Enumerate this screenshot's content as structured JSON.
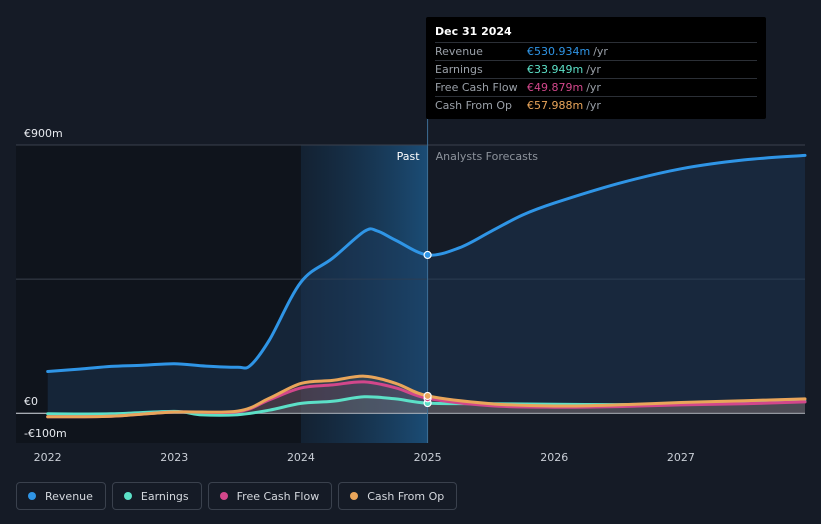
{
  "chart_data": {
    "type": "line",
    "title": "",
    "xlabel": "",
    "ylabel": "",
    "y_unit": "€",
    "ylim": [
      -100,
      900
    ],
    "xlim": [
      2021.75,
      2027.98
    ],
    "y_tick_labels": [
      {
        "value": 900,
        "label": "€900m"
      },
      {
        "value": 0,
        "label": "€0"
      },
      {
        "value": -100,
        "label": "-€100m"
      }
    ],
    "x_ticks": [
      {
        "value": 2022,
        "label": "2022"
      },
      {
        "value": 2023,
        "label": "2023"
      },
      {
        "value": 2024,
        "label": "2024"
      },
      {
        "value": 2025,
        "label": "2025"
      },
      {
        "value": 2026,
        "label": "2026"
      },
      {
        "value": 2027,
        "label": "2027"
      }
    ],
    "divider": {
      "x": 2025.0,
      "past_label": "Past",
      "forecast_label": "Analysts Forecasts"
    },
    "highlight_start": 2024.0,
    "series": [
      {
        "name": "Revenue",
        "color": "#2f95e6",
        "points": [
          [
            2022.0,
            140
          ],
          [
            2022.25,
            148
          ],
          [
            2022.5,
            157
          ],
          [
            2022.75,
            161
          ],
          [
            2023.0,
            166
          ],
          [
            2023.25,
            158
          ],
          [
            2023.5,
            154
          ],
          [
            2023.6,
            160
          ],
          [
            2023.75,
            245
          ],
          [
            2024.0,
            440
          ],
          [
            2024.25,
            520
          ],
          [
            2024.5,
            610
          ],
          [
            2024.6,
            612
          ],
          [
            2024.75,
            580
          ],
          [
            2025.0,
            531
          ],
          [
            2025.25,
            555
          ],
          [
            2025.5,
            610
          ],
          [
            2025.75,
            665
          ],
          [
            2026.0,
            705
          ],
          [
            2026.5,
            770
          ],
          [
            2027.0,
            820
          ],
          [
            2027.5,
            850
          ],
          [
            2027.98,
            865
          ]
        ]
      },
      {
        "name": "Earnings",
        "color": "#5ce0c7",
        "points": [
          [
            2022.0,
            -2
          ],
          [
            2022.5,
            -2
          ],
          [
            2023.0,
            6
          ],
          [
            2023.2,
            -5
          ],
          [
            2023.5,
            -5
          ],
          [
            2023.75,
            10
          ],
          [
            2024.0,
            33
          ],
          [
            2024.25,
            40
          ],
          [
            2024.5,
            55
          ],
          [
            2024.75,
            48
          ],
          [
            2025.0,
            34
          ],
          [
            2025.5,
            32
          ],
          [
            2026.0,
            30
          ],
          [
            2026.5,
            29
          ],
          [
            2027.0,
            31
          ],
          [
            2027.5,
            34
          ],
          [
            2027.98,
            40
          ]
        ]
      },
      {
        "name": "Free Cash Flow",
        "color": "#d2478b",
        "points": [
          [
            2022.0,
            -12
          ],
          [
            2022.5,
            -10
          ],
          [
            2023.0,
            4
          ],
          [
            2023.5,
            5
          ],
          [
            2023.75,
            45
          ],
          [
            2024.0,
            85
          ],
          [
            2024.25,
            95
          ],
          [
            2024.5,
            105
          ],
          [
            2024.75,
            85
          ],
          [
            2025.0,
            50
          ],
          [
            2025.5,
            25
          ],
          [
            2026.0,
            20
          ],
          [
            2026.5,
            22
          ],
          [
            2027.0,
            28
          ],
          [
            2027.5,
            32
          ],
          [
            2027.98,
            38
          ]
        ]
      },
      {
        "name": "Cash From Op",
        "color": "#e9a55a",
        "points": [
          [
            2022.0,
            -12
          ],
          [
            2022.5,
            -10
          ],
          [
            2023.0,
            4
          ],
          [
            2023.5,
            7
          ],
          [
            2023.75,
            50
          ],
          [
            2024.0,
            100
          ],
          [
            2024.25,
            110
          ],
          [
            2024.5,
            124
          ],
          [
            2024.75,
            100
          ],
          [
            2025.0,
            58
          ],
          [
            2025.5,
            32
          ],
          [
            2026.0,
            24
          ],
          [
            2026.5,
            28
          ],
          [
            2027.0,
            36
          ],
          [
            2027.5,
            42
          ],
          [
            2027.98,
            48
          ]
        ]
      }
    ]
  },
  "tooltip": {
    "date": "Dec 31 2024",
    "rows": [
      {
        "name": "Revenue",
        "value": "€530.934m",
        "unit": "/yr",
        "color": "#2f95e6"
      },
      {
        "name": "Earnings",
        "value": "€33.949m",
        "unit": "/yr",
        "color": "#5ce0c7"
      },
      {
        "name": "Free Cash Flow",
        "value": "€49.879m",
        "unit": "/yr",
        "color": "#d2478b"
      },
      {
        "name": "Cash From Op",
        "value": "€57.988m",
        "unit": "/yr",
        "color": "#e9a55a"
      }
    ]
  },
  "legend": [
    {
      "label": "Revenue",
      "color": "#2f95e6"
    },
    {
      "label": "Earnings",
      "color": "#5ce0c7"
    },
    {
      "label": "Free Cash Flow",
      "color": "#d2478b"
    },
    {
      "label": "Cash From Op",
      "color": "#e9a55a"
    }
  ]
}
